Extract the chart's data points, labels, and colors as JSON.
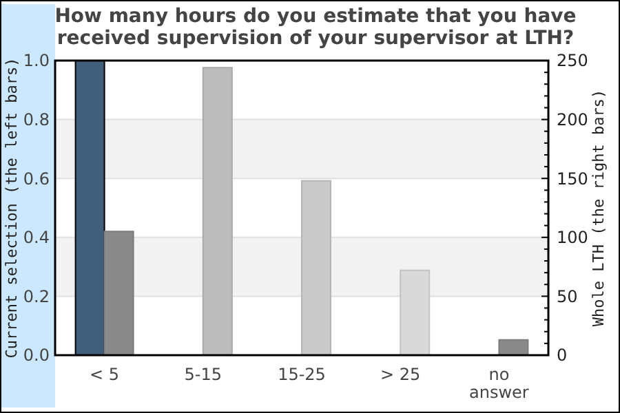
{
  "chart_data": {
    "type": "bar",
    "title": "How many hours do you estimate that you have received supervision of your supervisor at LTH?",
    "ylabel": "Current selection (the left bars)",
    "y2label": "Whole LTH (the right bars)",
    "categories": [
      "< 5",
      "5-15",
      "15-25",
      "> 25",
      "no answer"
    ],
    "series": [
      {
        "color": "#415f7b",
        "values": [
          1.0,
          null,
          null,
          null,
          null
        ]
      },
      {
        "axis": "y2",
        "colors": [
          "#8a8a8a",
          "#bcbcbc",
          "#c9c9c9",
          "#d9d9d9",
          "#8a8a8a"
        ],
        "values": [
          105,
          244,
          148,
          72,
          13
        ]
      }
    ],
    "ylim": [
      0,
      1
    ],
    "yticks": [
      {
        "value": 0,
        "label": "0.0"
      },
      0.2,
      0.4,
      0.6,
      0.8,
      {
        "value": 1,
        "label": "1.0"
      }
    ],
    "y2lim": [
      0,
      250
    ],
    "y2ticks": [
      0,
      {
        "value": 10,
        "label": null
      },
      {
        "value": 20,
        "label": null
      },
      {
        "value": 30,
        "label": null
      },
      {
        "value": 40,
        "label": null
      },
      50,
      {
        "value": 60,
        "label": null
      },
      {
        "value": 70,
        "label": null
      },
      {
        "value": 80,
        "label": null
      },
      {
        "value": 90,
        "label": null
      },
      100,
      {
        "value": 110,
        "label": null
      },
      {
        "value": 120,
        "label": null
      },
      {
        "value": 130,
        "label": null
      },
      {
        "value": 140,
        "label": null
      },
      150,
      {
        "value": 160,
        "label": null
      },
      {
        "value": 170,
        "label": null
      },
      {
        "value": 180,
        "label": null
      },
      {
        "value": 190,
        "label": null
      },
      200,
      {
        "value": 210,
        "label": null
      },
      {
        "value": 220,
        "label": null
      },
      {
        "value": 230,
        "label": null
      },
      {
        "value": 240,
        "label": null
      },
      250
    ],
    "bands": [
      {
        "axis": "y",
        "from": 0.2,
        "to": 0.4,
        "color": "#f2f2f2"
      },
      {
        "axis": "y",
        "from": 0.6,
        "to": 0.8,
        "color": "#f2f2f2"
      }
    ],
    "grid": "y"
  }
}
